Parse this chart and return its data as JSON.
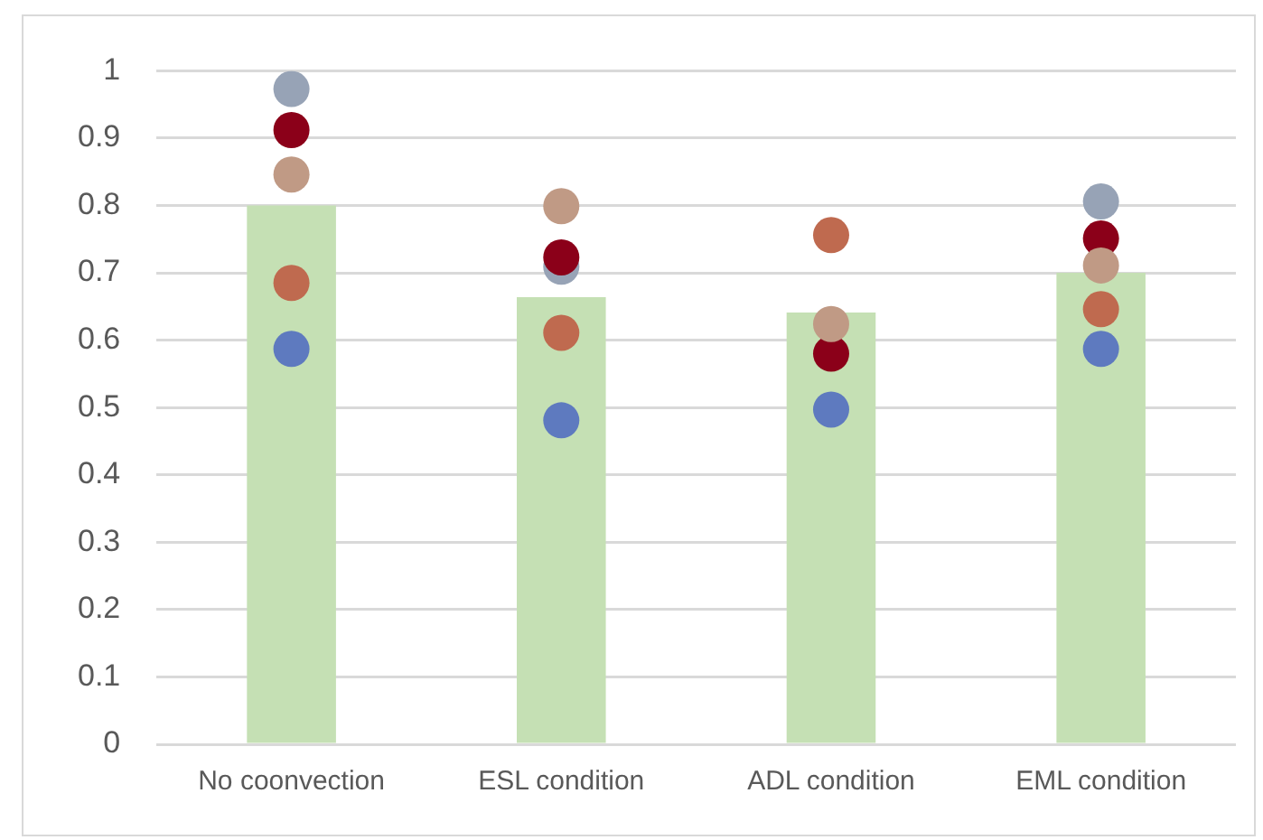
{
  "chart_data": {
    "type": "bar",
    "categories": [
      "No coonvection",
      "ESL condition",
      "ADL condition",
      "EML condition"
    ],
    "ylim": [
      0,
      1
    ],
    "yticks": [
      0,
      0.1,
      0.2,
      0.3,
      0.4,
      0.5,
      0.6,
      0.7,
      0.8,
      0.9,
      1
    ],
    "grid": "y",
    "legend": false,
    "marker": "circle",
    "series": [
      {
        "color": "#c5e0b4",
        "values": [
          0.8,
          0.664,
          0.641,
          0.7
        ]
      },
      {
        "type": "scatter",
        "color": "#97a3b6",
        "x": [
          "No coonvection",
          "ESL condition",
          "ADL condition",
          "EML condition"
        ],
        "values": [
          0.973,
          0.709,
          null,
          0.806
        ]
      },
      {
        "type": "scatter",
        "color": "#8b0019",
        "x": [
          "No coonvection",
          "ESL condition",
          "ADL condition",
          "EML condition"
        ],
        "values": [
          0.912,
          0.723,
          0.58,
          0.751
        ]
      },
      {
        "type": "scatter",
        "color": "#c09a85",
        "x": [
          "No coonvection",
          "ESL condition",
          "ADL condition",
          "EML condition"
        ],
        "values": [
          0.846,
          0.799,
          0.624,
          0.711
        ]
      },
      {
        "type": "scatter",
        "color": "#bf6a4f",
        "x": [
          "No coonvection",
          "ESL condition",
          "ADL condition",
          "EML condition"
        ],
        "values": [
          0.685,
          0.611,
          0.756,
          0.646
        ]
      },
      {
        "type": "scatter",
        "color": "#5e7abf",
        "x": [
          "No coonvection",
          "ESL condition",
          "ADL condition",
          "EML condition"
        ],
        "values": [
          0.587,
          0.481,
          0.497,
          0.587
        ]
      }
    ]
  }
}
